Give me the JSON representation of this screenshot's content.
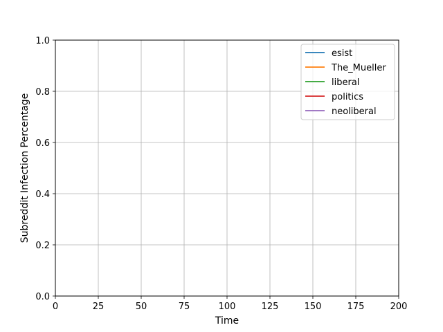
{
  "chart_data": {
    "type": "line",
    "title": "",
    "xlabel": "Time",
    "ylabel": "Subreddit Infection Percentage",
    "xlim": [
      0,
      200
    ],
    "ylim": [
      0.0,
      1.0
    ],
    "x_ticks": [
      0,
      25,
      50,
      75,
      100,
      125,
      150,
      175,
      200
    ],
    "x_tick_labels": [
      "0",
      "25",
      "50",
      "75",
      "100",
      "125",
      "150",
      "175",
      "200"
    ],
    "y_ticks": [
      0.0,
      0.2,
      0.4,
      0.6,
      0.8,
      1.0
    ],
    "y_tick_labels": [
      "0.0",
      "0.2",
      "0.4",
      "0.6",
      "0.8",
      "1.0"
    ],
    "grid": true,
    "legend_position": "top-right",
    "series": [
      {
        "name": "esist",
        "color": "#1f77b4",
        "x": [],
        "values": []
      },
      {
        "name": "The_Mueller",
        "color": "#ff7f0e",
        "x": [],
        "values": []
      },
      {
        "name": "liberal",
        "color": "#2ca02c",
        "x": [],
        "values": []
      },
      {
        "name": "politics",
        "color": "#d62728",
        "x": [],
        "values": []
      },
      {
        "name": "neoliberal",
        "color": "#9467bd",
        "x": [],
        "values": []
      }
    ]
  }
}
